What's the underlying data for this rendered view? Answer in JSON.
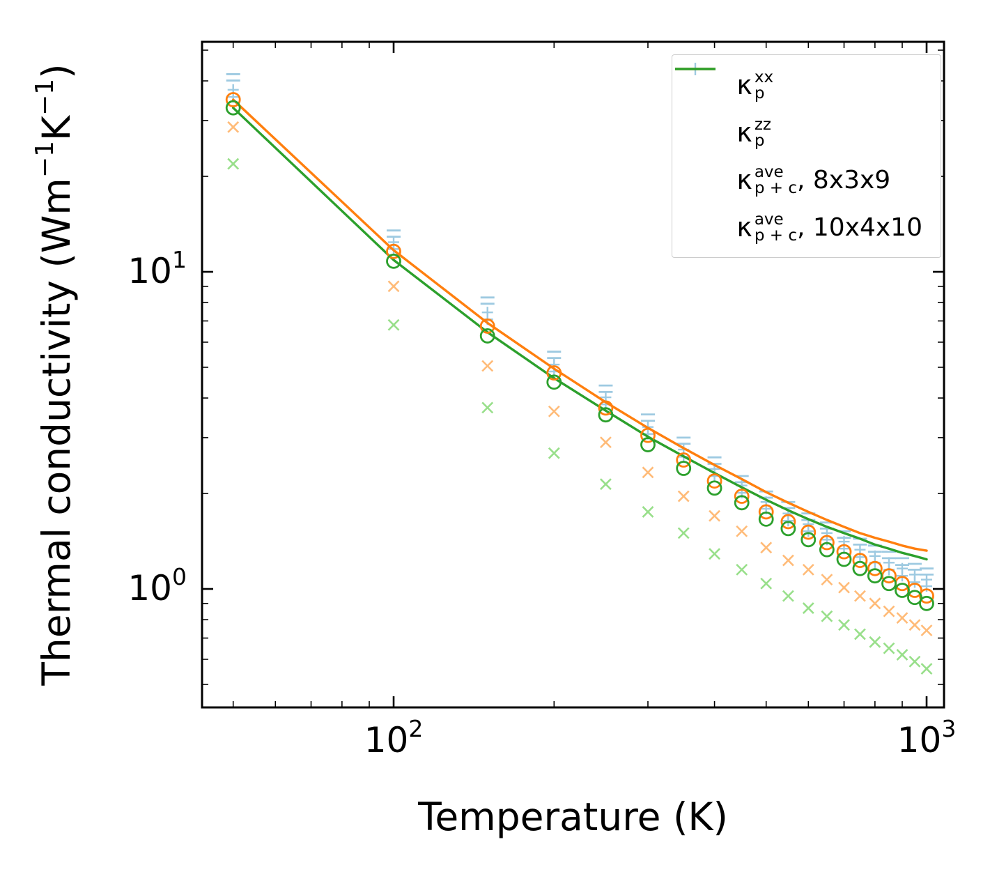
{
  "chart_data": {
    "type": "line+scatter",
    "title": "",
    "xlabel": "Temperature (K)",
    "ylabel_parts": [
      {
        "text": "Thermal conductivity (Wm"
      },
      {
        "text": "−1",
        "sup": true
      },
      {
        "text": "K"
      },
      {
        "text": "−1",
        "sup": true
      },
      {
        "text": ")"
      }
    ],
    "x_scale": "log",
    "y_scale": "log",
    "xlim": [
      44,
      1080
    ],
    "ylim": [
      0.42,
      53
    ],
    "grid": false,
    "legend_position": "upper right",
    "x_ticks": [
      {
        "value": 100,
        "base": "10",
        "exp": "2"
      },
      {
        "value": 1000,
        "base": "10",
        "exp": "3"
      }
    ],
    "y_ticks": [
      {
        "value": 10,
        "base": "10",
        "exp": "1"
      },
      {
        "value": 1,
        "base": "10",
        "exp": "0"
      }
    ],
    "x_minor_ticks": [
      50,
      60,
      70,
      80,
      90,
      200,
      300,
      400,
      500,
      600,
      700,
      800,
      900
    ],
    "y_minor_ticks": [
      0.5,
      0.6,
      0.7,
      0.8,
      0.9,
      2,
      3,
      4,
      5,
      6,
      7,
      8,
      9,
      20,
      30,
      40,
      50
    ],
    "temperatures": [
      50,
      100,
      150,
      200,
      250,
      300,
      350,
      400,
      450,
      500,
      550,
      600,
      650,
      700,
      750,
      800,
      850,
      900,
      950,
      1000
    ],
    "series": [
      {
        "id": "kappa-p-zz-markers-8x3x9",
        "marker": "minus",
        "color": "#9ecae1",
        "values": [
          42.0,
          13.5,
          8.3,
          5.6,
          4.38,
          3.55,
          3.0,
          2.6,
          2.27,
          2.03,
          1.88,
          1.73,
          1.62,
          1.52,
          1.44,
          1.37,
          1.31,
          1.25,
          1.2,
          1.16
        ]
      },
      {
        "id": "kappa-p-zz-markers-10x4x10",
        "marker": "minus",
        "color": "#9ecae1",
        "values": [
          40.1,
          12.9,
          7.93,
          5.35,
          4.18,
          3.39,
          2.87,
          2.48,
          2.17,
          1.94,
          1.8,
          1.65,
          1.55,
          1.45,
          1.38,
          1.31,
          1.25,
          1.19,
          1.15,
          1.11
        ]
      },
      {
        "id": "kappa-p-xx-markers-8x3x9",
        "marker": "plus",
        "color": "#9ecae1",
        "values": [
          37.5,
          12.4,
          7.45,
          5.1,
          4.02,
          3.24,
          2.75,
          2.39,
          2.12,
          1.88,
          1.73,
          1.6,
          1.5,
          1.41,
          1.33,
          1.27,
          1.21,
          1.16,
          1.11,
          1.07
        ]
      },
      {
        "id": "kappa-p-xx-markers-10x4x10",
        "marker": "plus",
        "color": "#9ecae1",
        "values": [
          35.6,
          11.8,
          7.08,
          4.85,
          3.82,
          3.08,
          2.61,
          2.27,
          2.01,
          1.79,
          1.64,
          1.52,
          1.43,
          1.34,
          1.26,
          1.21,
          1.15,
          1.1,
          1.05,
          1.02
        ]
      },
      {
        "id": "orange-cross-markers-8x3x9",
        "marker": "x",
        "color": "#ffbb78",
        "values": [
          28.6,
          9.0,
          5.05,
          3.63,
          2.9,
          2.33,
          1.96,
          1.7,
          1.52,
          1.35,
          1.23,
          1.15,
          1.07,
          1.01,
          0.95,
          0.9,
          0.85,
          0.81,
          0.77,
          0.74
        ]
      },
      {
        "id": "green-cross-markers-10x4x10",
        "marker": "x",
        "color": "#98df8a",
        "values": [
          21.9,
          6.8,
          3.73,
          2.68,
          2.14,
          1.75,
          1.5,
          1.29,
          1.15,
          1.04,
          0.95,
          0.87,
          0.82,
          0.77,
          0.72,
          0.68,
          0.65,
          0.62,
          0.59,
          0.56
        ]
      },
      {
        "id": "kappa-p-plus-c-ave-8x3x9-line",
        "line": true,
        "color": "#ff7f0e",
        "values": [
          34.9,
          11.7,
          6.9,
          4.95,
          3.88,
          3.22,
          2.78,
          2.46,
          2.22,
          2.02,
          1.87,
          1.75,
          1.65,
          1.57,
          1.5,
          1.45,
          1.41,
          1.37,
          1.34,
          1.32
        ]
      },
      {
        "id": "kappa-p-plus-c-ave-10x4x10-line",
        "line": true,
        "color": "#2ca02c",
        "values": [
          32.9,
          10.9,
          6.45,
          4.62,
          3.65,
          3.02,
          2.62,
          2.32,
          2.09,
          1.91,
          1.77,
          1.66,
          1.57,
          1.5,
          1.44,
          1.38,
          1.34,
          1.3,
          1.27,
          1.24
        ]
      },
      {
        "id": "orange-circle-markers-8x3x9",
        "marker": "circle",
        "color": "#ff7f0e",
        "values": [
          34.9,
          11.6,
          6.74,
          4.8,
          3.72,
          3.05,
          2.55,
          2.19,
          1.96,
          1.75,
          1.63,
          1.51,
          1.4,
          1.31,
          1.23,
          1.16,
          1.1,
          1.04,
          0.99,
          0.95
        ]
      },
      {
        "id": "green-circle-markers-10x4x10",
        "marker": "circle",
        "color": "#2ca02c",
        "values": [
          32.9,
          10.8,
          6.28,
          4.49,
          3.54,
          2.85,
          2.4,
          2.08,
          1.87,
          1.66,
          1.55,
          1.43,
          1.33,
          1.24,
          1.16,
          1.1,
          1.04,
          0.99,
          0.94,
          0.9
        ]
      }
    ],
    "legend": {
      "entries": [
        {
          "marker": "plus",
          "color": "#9ecae1",
          "kappa": "κ",
          "sup": "xx",
          "sub": "p",
          "suffix": ""
        },
        {
          "marker": "minus",
          "color": "#9ecae1",
          "kappa": "κ",
          "sup": "zz",
          "sub": "p",
          "suffix": ""
        },
        {
          "marker": "line",
          "color": "#ff7f0e",
          "kappa": "κ",
          "sup": "ave",
          "sub": "p + c",
          "suffix": ", 8x3x9"
        },
        {
          "marker": "line",
          "color": "#2ca02c",
          "kappa": "κ",
          "sup": "ave",
          "sub": "p + c",
          "suffix": ", 10x4x10"
        }
      ]
    }
  }
}
